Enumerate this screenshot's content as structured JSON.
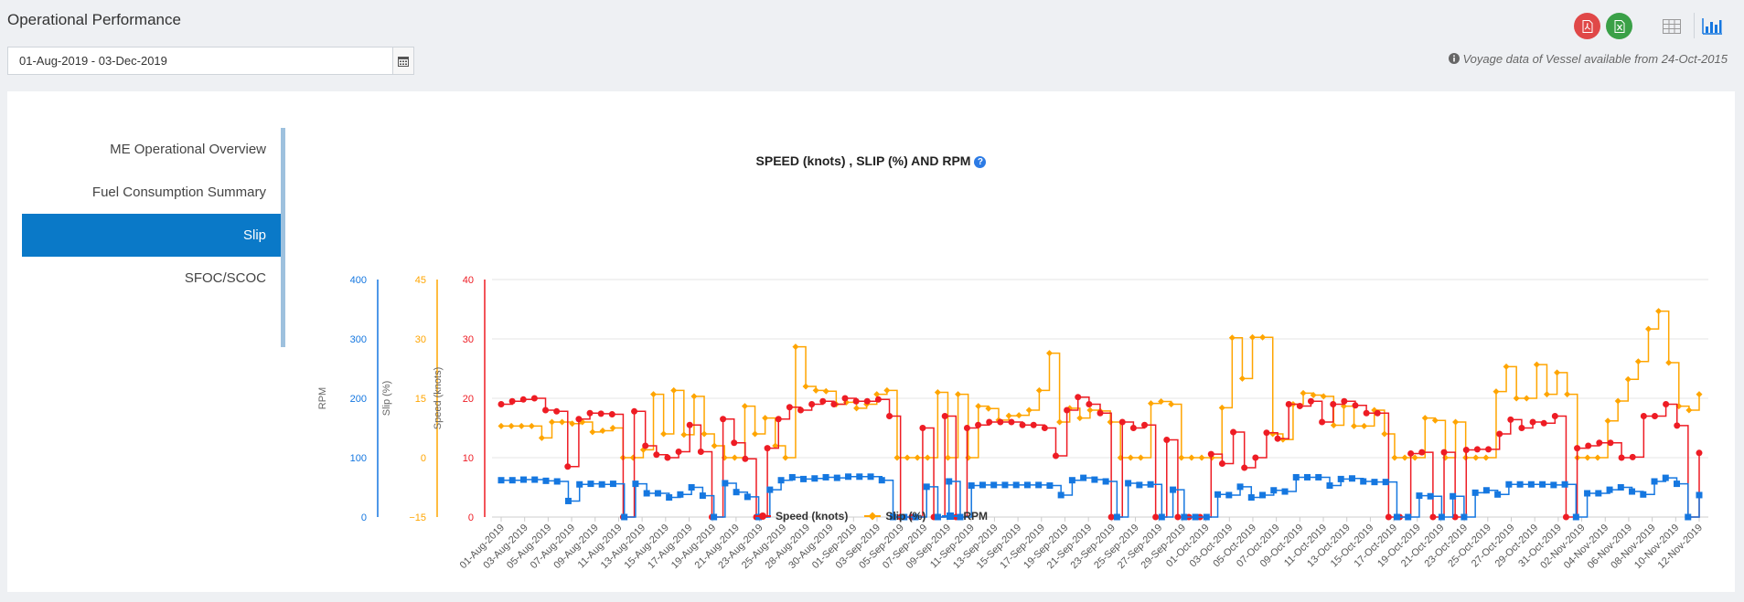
{
  "page": {
    "title": "Operational Performance",
    "date_range": "01-Aug-2019 - 03-Dec-2019",
    "availability_note": "Voyage data of Vessel available from 24-Oct-2015"
  },
  "icons": {
    "pdf": "file-pdf-icon",
    "excel": "file-excel-icon",
    "table": "table-icon",
    "chart": "bar-chart-icon",
    "calendar": "calendar-icon",
    "info": "info-circle-icon",
    "help": "question-circle-icon"
  },
  "colors": {
    "speed": "#ee1c24",
    "slip": "#ffa500",
    "rpm": "#1577e0",
    "nav_active": "#0a79c8"
  },
  "side_nav": [
    {
      "label": "ME Operational Overview",
      "active": false
    },
    {
      "label": "Fuel Consumption Summary",
      "active": false
    },
    {
      "label": "Slip",
      "active": true
    },
    {
      "label": "SFOC/SCOC",
      "active": false
    }
  ],
  "chart_data": {
    "type": "line",
    "step": true,
    "title": "SPEED (knots) , SLIP (%) AND RPM",
    "axes": [
      {
        "label": "RPM",
        "ticks": [
          "0",
          "100",
          "200",
          "300",
          "400"
        ],
        "range": [
          0,
          400
        ],
        "color": "#1577e0"
      },
      {
        "label": "Slip (%)",
        "ticks": [
          "−15",
          "0",
          "15",
          "30",
          "45"
        ],
        "range": [
          -15,
          45
        ],
        "color": "#ffa500"
      },
      {
        "label": "Speed (knots)",
        "ticks": [
          "0",
          "10",
          "20",
          "30",
          "40"
        ],
        "range": [
          0,
          40
        ],
        "color": "#ee1c24"
      }
    ],
    "x_tick_labels": [
      "01-Aug-2019",
      "03-Aug-2019",
      "05-Aug-2019",
      "07-Aug-2019",
      "09-Aug-2019",
      "11-Aug-2019",
      "13-Aug-2019",
      "15-Aug-2019",
      "17-Aug-2019",
      "19-Aug-2019",
      "21-Aug-2019",
      "23-Aug-2019",
      "25-Aug-2019",
      "28-Aug-2019",
      "30-Aug-2019",
      "01-Sep-2019",
      "03-Sep-2019",
      "05-Sep-2019",
      "07-Sep-2019",
      "09-Sep-2019",
      "11-Sep-2019",
      "13-Sep-2019",
      "15-Sep-2019",
      "17-Sep-2019",
      "19-Sep-2019",
      "21-Sep-2019",
      "23-Sep-2019",
      "25-Sep-2019",
      "27-Sep-2019",
      "29-Sep-2019",
      "01-Oct-2019",
      "03-Oct-2019",
      "05-Oct-2019",
      "07-Oct-2019",
      "09-Oct-2019",
      "11-Oct-2019",
      "13-Oct-2019",
      "15-Oct-2019",
      "17-Oct-2019",
      "19-Oct-2019",
      "21-Oct-2019",
      "23-Oct-2019",
      "25-Oct-2019",
      "27-Oct-2019",
      "29-Oct-2019",
      "31-Oct-2019",
      "02-Nov-2019",
      "04-Nov-2019",
      "06-Nov-2019",
      "08-Nov-2019",
      "10-Nov-2019",
      "12-Nov-2019"
    ],
    "series": [
      {
        "name": "Speed (knots)",
        "axis": 2,
        "marker": "circle",
        "values": [
          19,
          19.5,
          19.8,
          20,
          18,
          17.8,
          8.5,
          16.5,
          17.5,
          17.4,
          17.3,
          0,
          17.8,
          12,
          10.5,
          10,
          11,
          15.5,
          11,
          0,
          16.5,
          12.5,
          9.8,
          0,
          11.6,
          16.5,
          18.5,
          18,
          19,
          19.5,
          19,
          20,
          19.5,
          19.5,
          19.8,
          17,
          0,
          0,
          15,
          0,
          17,
          0,
          15,
          15.5,
          16,
          16,
          16,
          15.5,
          15.5,
          15,
          10.3,
          18,
          20.2,
          19,
          17.5,
          0,
          16,
          15,
          15.5,
          0,
          13,
          0,
          0,
          0,
          10.6,
          9,
          14.3,
          8.3,
          10,
          14.2,
          13.2,
          19,
          18.7,
          19.5,
          16,
          19,
          19.5,
          18.8,
          17.5,
          17.5,
          0,
          0,
          10.7,
          10.9,
          0,
          10.9,
          0,
          11.3,
          11.4,
          11.4,
          14,
          16.4,
          15,
          16,
          15.8,
          17,
          0,
          11.6,
          12,
          12.5,
          12.5,
          10,
          10.1,
          17,
          17,
          19,
          15.4,
          0,
          10.8
        ]
      },
      {
        "name": "Slip (%)",
        "axis": 1,
        "marker": "diamond",
        "values": [
          8,
          8,
          8,
          8,
          5,
          9,
          9,
          8.6,
          9,
          6.5,
          6.8,
          7.5,
          0,
          0,
          2,
          16,
          6,
          17,
          5.8,
          15.5,
          6,
          3,
          0,
          0,
          13,
          6,
          10,
          3,
          0,
          28,
          18,
          17,
          16.8,
          13.5,
          14,
          12.5,
          13.5,
          16,
          17,
          0,
          0,
          0,
          0,
          16.5,
          0,
          16,
          0,
          13,
          12.4,
          9.5,
          10.6,
          10.7,
          12,
          17,
          26.4,
          9,
          12.5,
          10,
          12,
          11.8,
          9,
          0,
          0,
          0,
          13.7,
          14.2,
          13.5,
          0,
          0,
          0,
          0,
          12.6,
          30.3,
          20,
          30.4,
          30.4,
          6,
          4.6,
          13.5,
          16.3,
          15.8,
          15.5,
          8.2,
          13,
          8,
          8,
          12,
          6,
          0,
          0,
          0,
          10,
          9.4,
          0,
          9,
          0,
          0,
          0,
          16.7,
          23,
          15,
          15,
          23.5,
          16,
          21.5,
          16,
          0,
          0,
          0,
          9.3,
          14.3,
          19.8,
          24.3,
          32.5,
          37,
          24,
          13,
          12,
          16
        ]
      },
      {
        "name": "RPM",
        "axis": 0,
        "marker": "square",
        "values": [
          62,
          62,
          63,
          63,
          61,
          60,
          27,
          55,
          56,
          55,
          56,
          0,
          56,
          40,
          40,
          33,
          38,
          50,
          36,
          0,
          57,
          42,
          34,
          0,
          46,
          62,
          67,
          64,
          65,
          67,
          66,
          68,
          68,
          68,
          62,
          0,
          0,
          0,
          51,
          0,
          60,
          0,
          53,
          54,
          54,
          54,
          54,
          54,
          54,
          53,
          37,
          62,
          66,
          63,
          60,
          0,
          57,
          54,
          55,
          0,
          46,
          0,
          0,
          0,
          38,
          37,
          51,
          33,
          37,
          45,
          43,
          67,
          67,
          67,
          53,
          64,
          65,
          60,
          59,
          59,
          0,
          0,
          36,
          35,
          0,
          35,
          0,
          41,
          45,
          38,
          55,
          55,
          55,
          55,
          54,
          55,
          0,
          40,
          40,
          46,
          50,
          43,
          38,
          60,
          66,
          56,
          0,
          37
        ]
      }
    ]
  },
  "legend": [
    {
      "label": "Speed (knots)"
    },
    {
      "label": "Slip (%)"
    },
    {
      "label": "RPM"
    }
  ]
}
